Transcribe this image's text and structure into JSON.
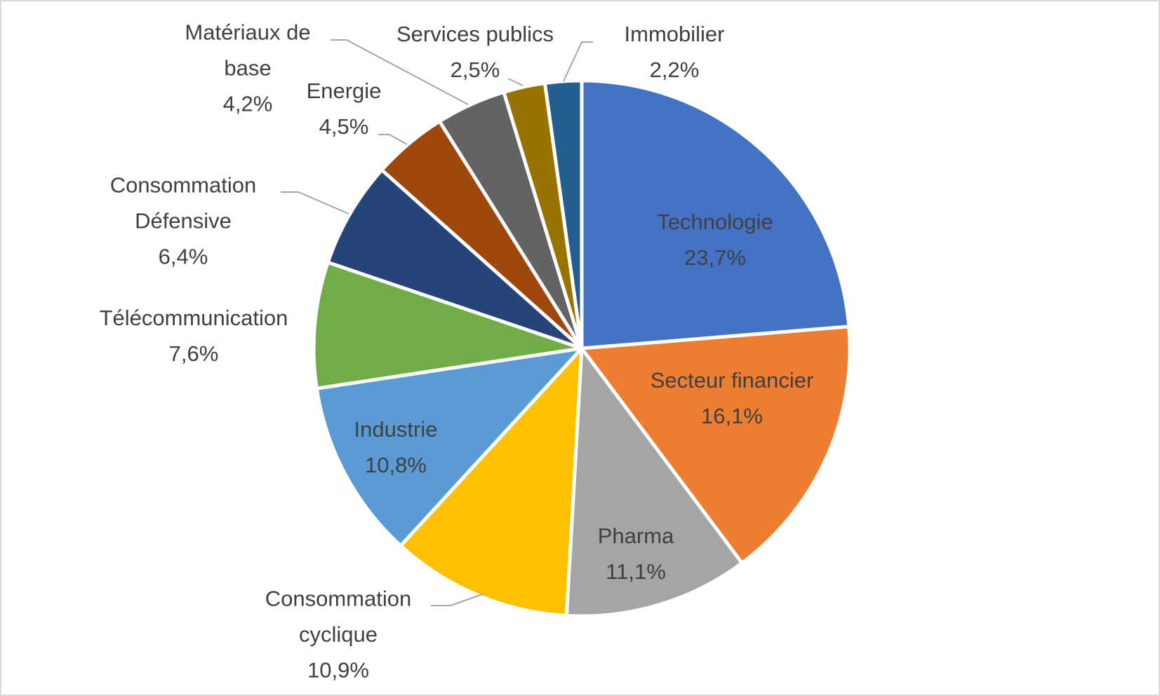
{
  "chart_data": {
    "type": "pie",
    "categories": [
      "Technologie",
      "Secteur financier",
      "Pharma",
      "Consommation cyclique",
      "Industrie",
      "Télécommunication",
      "Consommation Défensive",
      "Energie",
      "Matériaux de base",
      "Services publics",
      "Immobilier"
    ],
    "values": [
      23.7,
      16.1,
      11.1,
      10.9,
      10.8,
      7.6,
      6.4,
      4.5,
      4.2,
      2.5,
      2.2
    ],
    "value_labels": [
      "23,7%",
      "16,1%",
      "11,1%",
      "10,9%",
      "10,8%",
      "7,6%",
      "6,4%",
      "4,5%",
      "4,2%",
      "2,5%",
      "2,2%"
    ],
    "colors": [
      "#4472c4",
      "#ed7d31",
      "#a5a5a5",
      "#ffc000",
      "#5b9bd5",
      "#70ad47",
      "#264478",
      "#9e480e",
      "#636363",
      "#997300",
      "#255e91"
    ]
  }
}
